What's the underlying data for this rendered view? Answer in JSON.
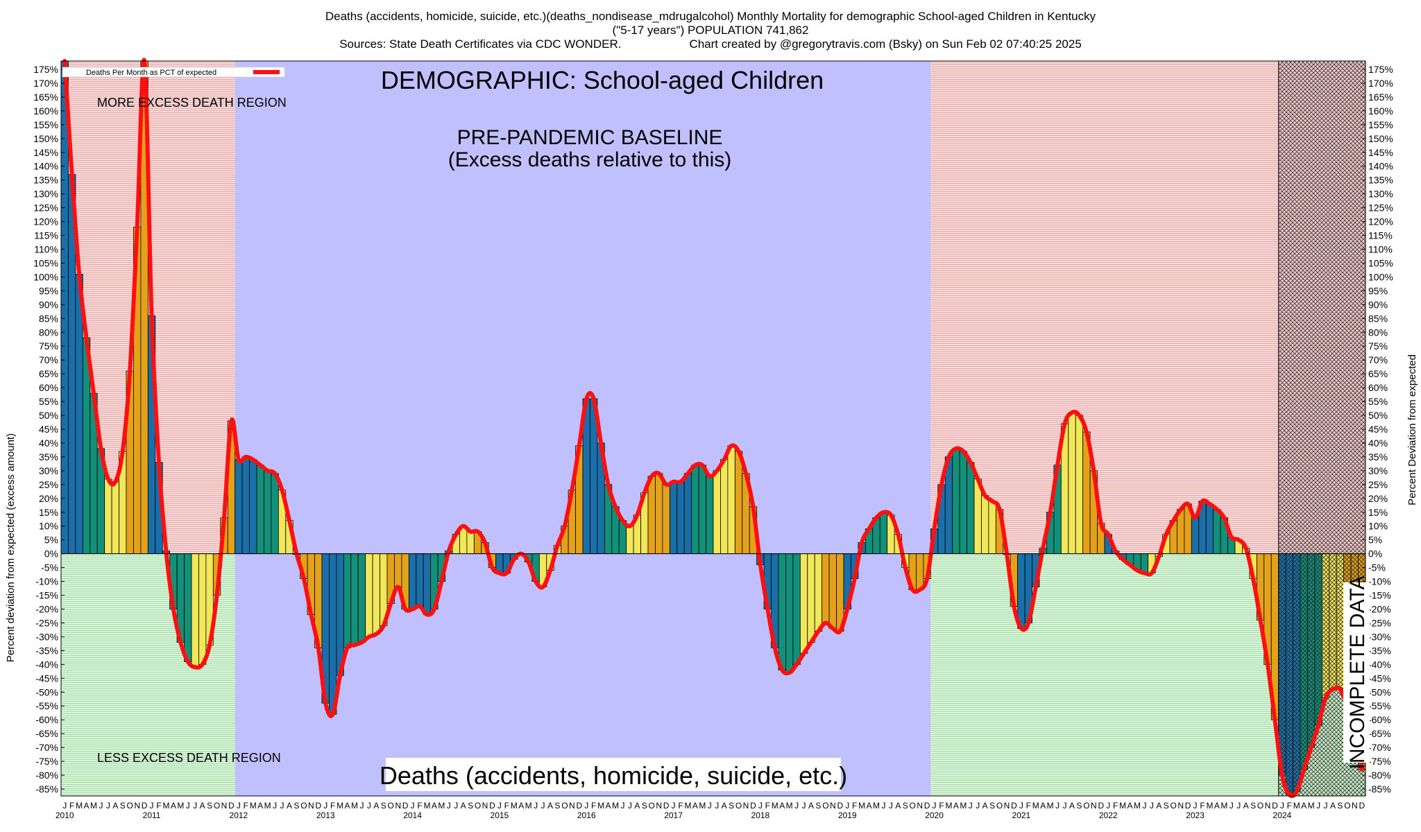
{
  "titles": {
    "line1": "Deaths (accidents, homicide, suicide, etc.)(deaths_nondisease_mdrugalcohol) Monthly Mortality for demographic School-aged Children in Kentucky",
    "line2": "(\"5-17 years\") POPULATION 741,862",
    "sources": "Sources: State Death Certificates via CDC WONDER.",
    "credit": "Chart created by @gregorytravis.com (Bsky) on Sun Feb 02 07:40:25 2025"
  },
  "labels": {
    "demographic": "DEMOGRAPHIC: School-aged Children",
    "baseline_1": "PRE-PANDEMIC BASELINE",
    "baseline_2": "(Excess deaths relative to this)",
    "more_excess": "MORE EXCESS DEATH REGION",
    "less_excess": "LESS EXCESS DEATH REGION",
    "cause": "Deaths (accidents, homicide, suicide, etc.)",
    "incomplete": "INCOMPLETE DATA",
    "legend": "Deaths Per Month as PCT of expected"
  },
  "colors": {
    "bar_cycle": [
      "#1a6fa8",
      "#12907a",
      "#f2e65a",
      "#e4a21a"
    ],
    "line": "#ff1010",
    "baseline_bg": "#c0c0ff",
    "more_region": "#f2c8c8",
    "less_region": "#c8f0c8"
  },
  "chart_data": {
    "type": "bar",
    "y_unit": "%",
    "ylabel_left": "Percent deviation from expected (excess amount)",
    "ylabel_right": "Percent Deviation from expected",
    "ylim": [
      -85,
      175
    ],
    "y_ticks_step": 5,
    "start": "2010-01",
    "month_letters": [
      "J",
      "F",
      "M",
      "A",
      "M",
      "J",
      "J",
      "A",
      "S",
      "O",
      "N",
      "D"
    ],
    "years": [
      "2010",
      "2011",
      "2012",
      "2013",
      "2014",
      "2015",
      "2016",
      "2017",
      "2018",
      "2019",
      "2020",
      "2021",
      "2022",
      "2023",
      "2024"
    ],
    "baseline_period": [
      "2012-01",
      "2019-12"
    ],
    "incomplete_from": "2024-01",
    "series": [
      {
        "name": "Deaths Per Month as PCT of expected",
        "values": [
          178,
          137,
          101,
          78,
          58,
          38,
          27,
          26,
          37,
          66,
          118,
          178,
          86,
          33,
          1,
          -20,
          -32,
          -39,
          -41,
          -40,
          -33,
          -15,
          13,
          48,
          34,
          35,
          34,
          32,
          30,
          29,
          23,
          12,
          0,
          -9,
          -22,
          -34,
          -54,
          -58,
          -44,
          -34,
          -33,
          -32,
          -30,
          -29,
          -26,
          -18,
          -12,
          -20,
          -20,
          -19,
          -22,
          -20,
          -10,
          1,
          7,
          10,
          8,
          8,
          4,
          -5,
          -7,
          -7,
          -2,
          0,
          -3,
          -10,
          -12,
          -6,
          3,
          10,
          23,
          39,
          56,
          56,
          40,
          25,
          17,
          12,
          10,
          14,
          22,
          28,
          29,
          25,
          26,
          26,
          29,
          32,
          32,
          28,
          30,
          34,
          39,
          37,
          29,
          17,
          -4,
          -20,
          -34,
          -42,
          -43,
          -40,
          -36,
          -32,
          -28,
          -25,
          -27,
          -28,
          -20,
          -9,
          4,
          9,
          13,
          15,
          14,
          7,
          -5,
          -13,
          -13,
          -9,
          9,
          25,
          35,
          38,
          37,
          33,
          27,
          21,
          19,
          16,
          0,
          -19,
          -27,
          -25,
          -12,
          2,
          15,
          32,
          47,
          51,
          50,
          44,
          30,
          11,
          7,
          1,
          -2,
          -4,
          -6,
          -7,
          -7,
          -1,
          7,
          12,
          16,
          18,
          13,
          19,
          18,
          16,
          13,
          6,
          5,
          2,
          -9,
          -24,
          -40,
          -60,
          -80,
          -87,
          -86,
          -78,
          -70,
          -62,
          -52,
          -49,
          -49,
          -55,
          -62,
          -78
        ]
      }
    ]
  }
}
